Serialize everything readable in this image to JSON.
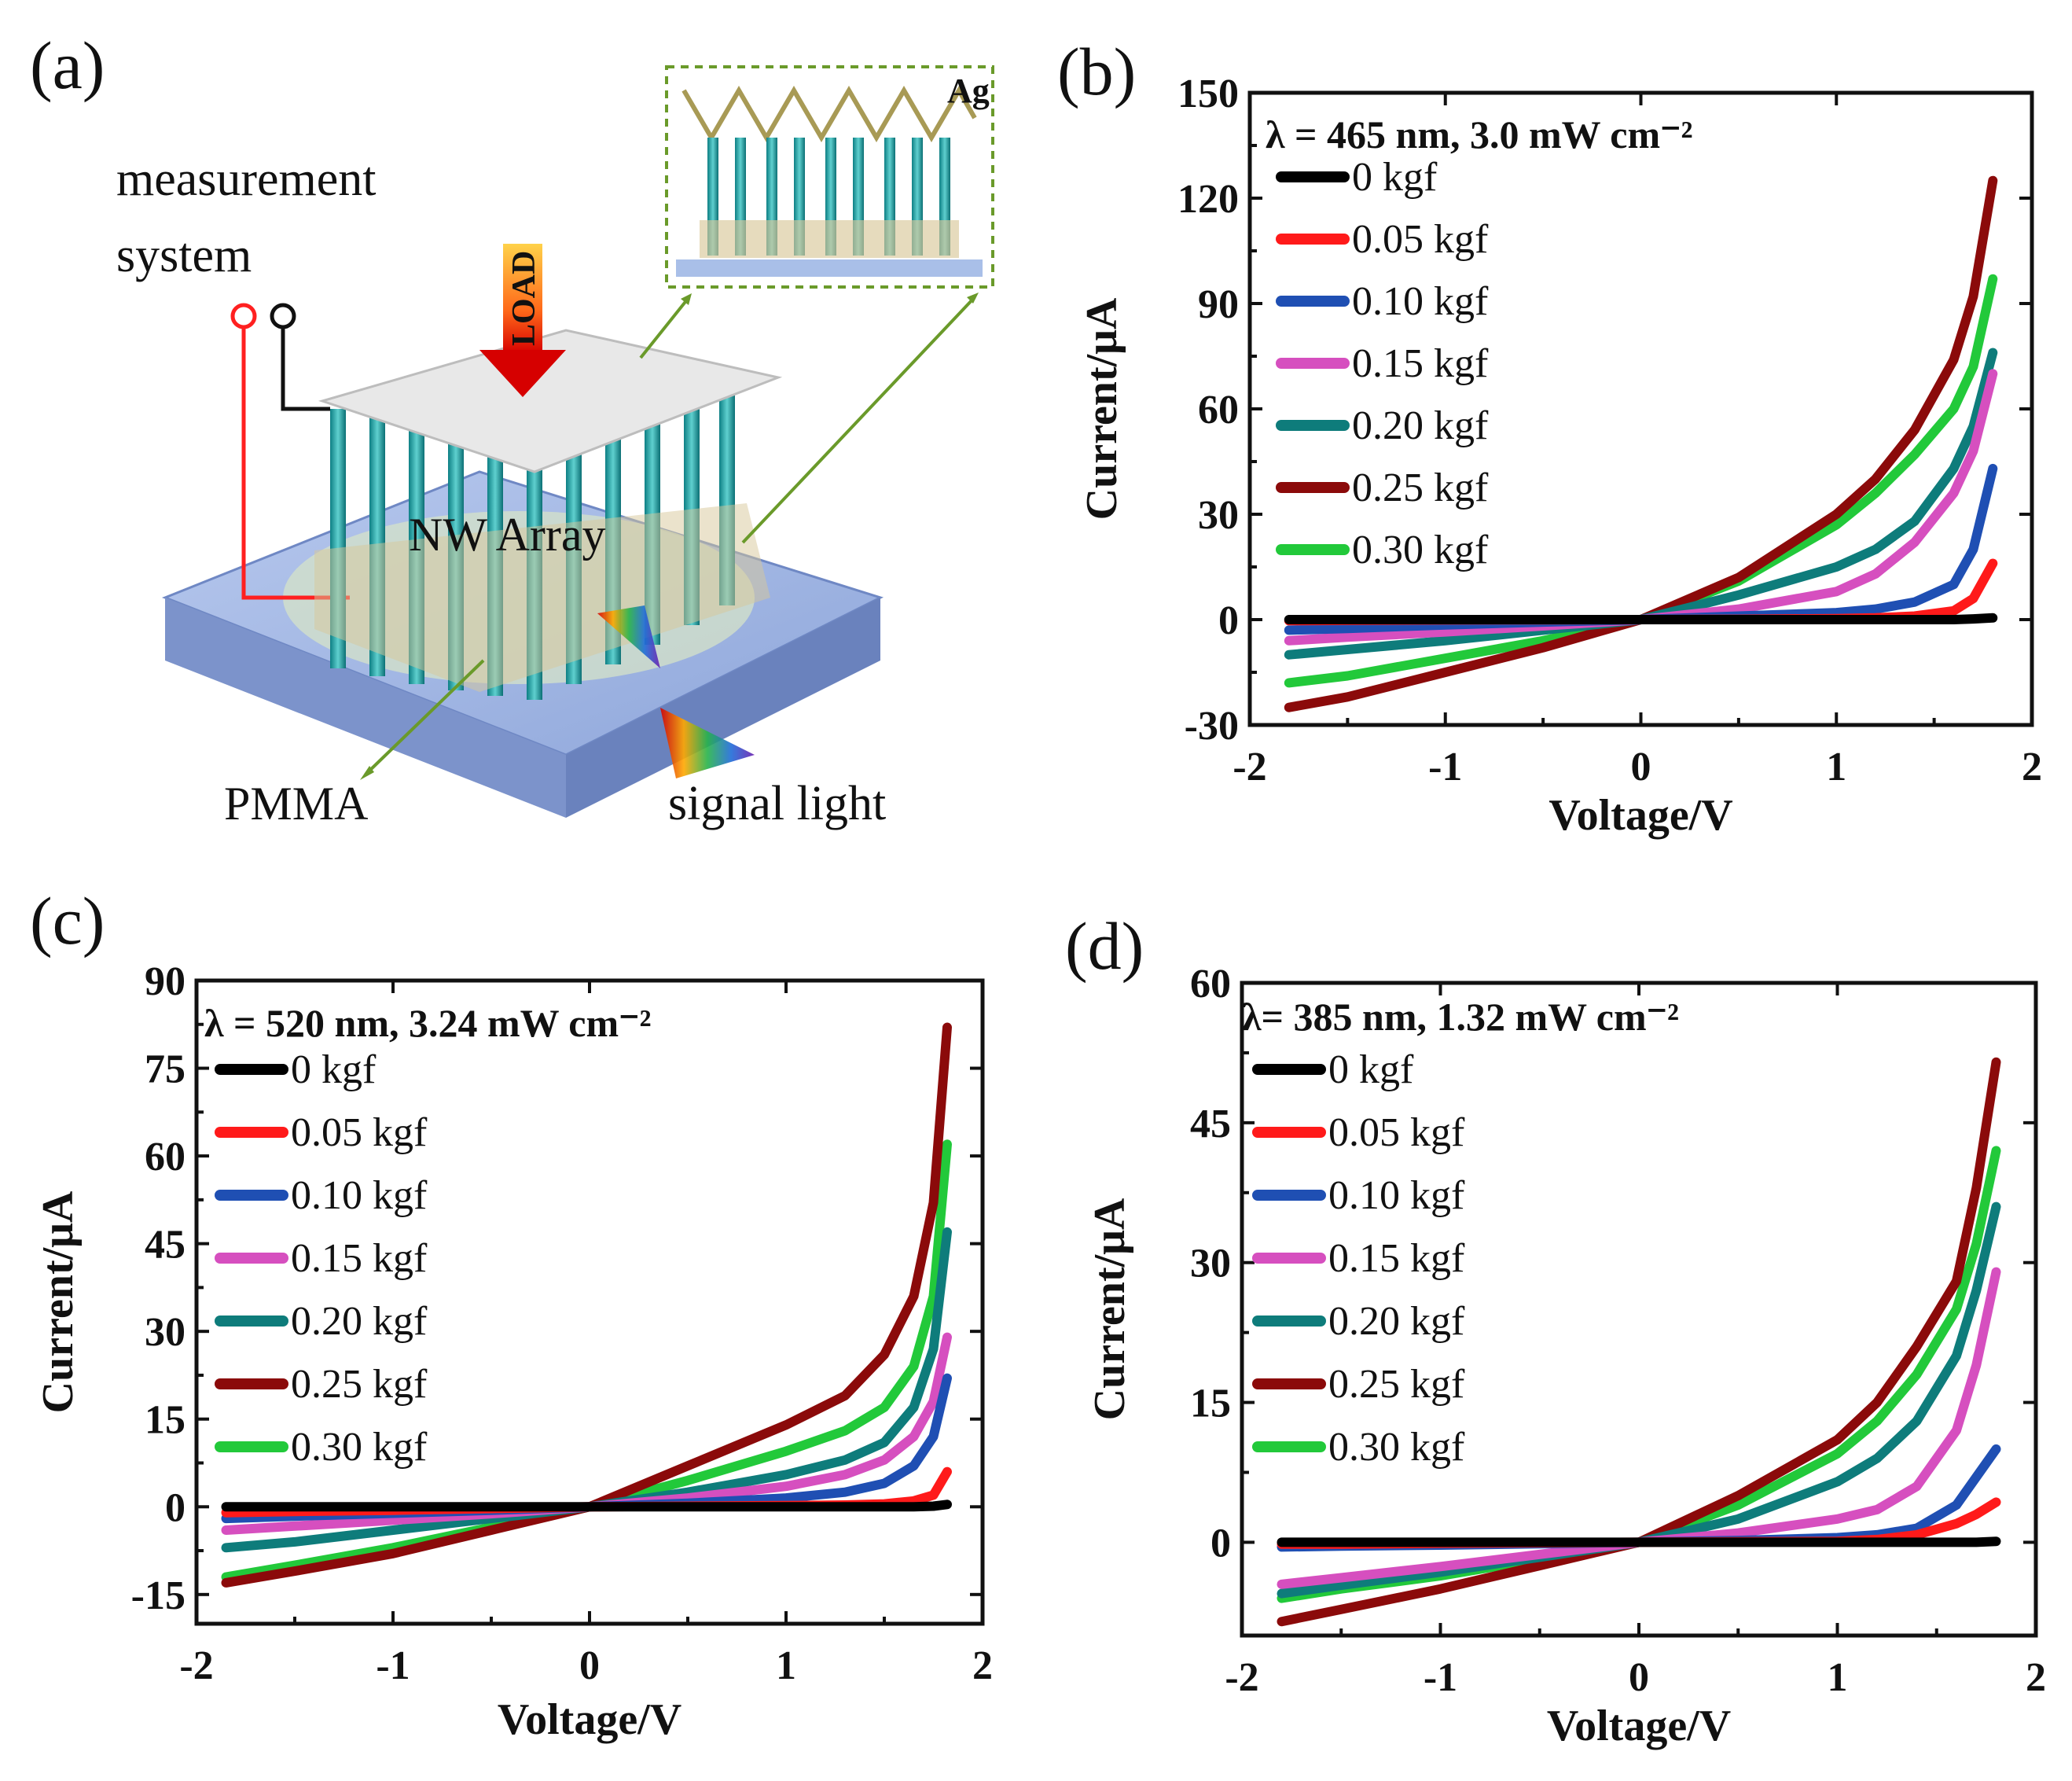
{
  "figure": {
    "panel_labels": [
      "(a)",
      "(b)",
      "(c)",
      "(d)"
    ]
  },
  "schematic": {
    "measurement_label_line1": "measurement",
    "measurement_label_line2": "system",
    "load_label": "LOAD",
    "inset_metal": "Ag",
    "array_label": "NW Array",
    "pmma_label": "PMMA",
    "light_label": "signal light"
  },
  "chart_data": [
    {
      "panel": "(b)",
      "type": "line",
      "title": "λ = 465 nm, 3.0 mW cm⁻²",
      "xlabel": "Voltage/V",
      "ylabel": "Current/μA",
      "xlim": [
        -2,
        2
      ],
      "ylim": [
        -30,
        150
      ],
      "xticks": [
        -2,
        -1,
        0,
        1,
        2
      ],
      "yticks": [
        -30,
        0,
        30,
        60,
        90,
        120,
        150
      ],
      "x": [
        -1.8,
        -1.5,
        -1.0,
        -0.5,
        0,
        0.5,
        1.0,
        1.2,
        1.4,
        1.6,
        1.7,
        1.8
      ],
      "series": [
        {
          "name": "0 kgf",
          "color": "#000000",
          "values": [
            0,
            0,
            0,
            0,
            0,
            0,
            0,
            0,
            0,
            0,
            0.2,
            0.5
          ]
        },
        {
          "name": "0.05 kgf",
          "color": "#ff1a1a",
          "values": [
            -0.3,
            -0.2,
            -0.1,
            -0.05,
            0,
            0.1,
            0.3,
            0.5,
            1,
            2.5,
            6,
            16
          ]
        },
        {
          "name": "0.10 kgf",
          "color": "#1f4fb3",
          "values": [
            -3,
            -2.5,
            -1.5,
            -0.7,
            0,
            1,
            2,
            3,
            5,
            10,
            20,
            43
          ]
        },
        {
          "name": "0.15 kgf",
          "color": "#d64fbf",
          "values": [
            -6,
            -5,
            -3.5,
            -1.8,
            0,
            3,
            8,
            13,
            22,
            36,
            48,
            70
          ]
        },
        {
          "name": "0.20 kgf",
          "color": "#0e7c7b",
          "values": [
            -10,
            -8.5,
            -6,
            -3,
            0,
            7,
            15,
            20,
            28,
            43,
            55,
            76
          ]
        },
        {
          "name": "0.25 kgf",
          "color": "#8b0a0a",
          "values": [
            -25,
            -22,
            -15,
            -8,
            0,
            12,
            30,
            40,
            54,
            74,
            92,
            125
          ]
        },
        {
          "name": "0.30 kgf",
          "color": "#22c93a",
          "values": [
            -18,
            -16,
            -11,
            -6,
            0,
            11,
            27,
            36,
            47,
            60,
            72,
            97
          ]
        }
      ]
    },
    {
      "panel": "(c)",
      "type": "line",
      "title": "λ = 520 nm, 3.24 mW cm⁻²",
      "xlabel": "Voltage/V",
      "ylabel": "Current/μA",
      "xlim": [
        -2,
        2
      ],
      "ylim": [
        -20,
        90
      ],
      "xticks": [
        -2,
        -1,
        0,
        1,
        2
      ],
      "yticks": [
        -15,
        0,
        15,
        30,
        45,
        60,
        75,
        90
      ],
      "x": [
        -1.85,
        -1.5,
        -1.0,
        -0.5,
        0,
        0.5,
        1.0,
        1.3,
        1.5,
        1.65,
        1.75,
        1.82
      ],
      "series": [
        {
          "name": "0 kgf",
          "color": "#000000",
          "values": [
            0,
            0,
            0,
            0,
            0,
            0,
            0,
            0,
            0,
            0,
            0.1,
            0.4
          ]
        },
        {
          "name": "0.05 kgf",
          "color": "#ff1a1a",
          "values": [
            -1,
            -0.8,
            -0.6,
            -0.3,
            0,
            0.1,
            0.2,
            0.3,
            0.5,
            1,
            2,
            6
          ]
        },
        {
          "name": "0.10 kgf",
          "color": "#1f4fb3",
          "values": [
            -2,
            -1.6,
            -1.1,
            -0.6,
            0,
            0.6,
            1.5,
            2.5,
            4,
            7,
            12,
            22
          ]
        },
        {
          "name": "0.15 kgf",
          "color": "#d64fbf",
          "values": [
            -4,
            -3.3,
            -2.3,
            -1.2,
            0,
            1.5,
            3.5,
            5.5,
            8,
            12,
            18,
            29
          ]
        },
        {
          "name": "0.20 kgf",
          "color": "#0e7c7b",
          "values": [
            -7,
            -6,
            -4,
            -2,
            0,
            2.5,
            5.5,
            8,
            11,
            17,
            27,
            47
          ]
        },
        {
          "name": "0.25 kgf",
          "color": "#8b0a0a",
          "values": [
            -13,
            -11,
            -8,
            -4,
            0,
            7,
            14,
            19,
            26,
            36,
            52,
            82
          ]
        },
        {
          "name": "0.30 kgf",
          "color": "#22c93a",
          "values": [
            -12,
            -10,
            -7,
            -3.5,
            0,
            4.5,
            9.5,
            13,
            17,
            24,
            36,
            62
          ]
        }
      ]
    },
    {
      "panel": "(d)",
      "type": "line",
      "title": "λ= 385 nm, 1.32 mW cm⁻²",
      "xlabel": "Voltage/V",
      "ylabel": "Current/μA",
      "xlim": [
        -2,
        2
      ],
      "ylim": [
        -10,
        60
      ],
      "xticks": [
        -2,
        -1,
        0,
        1,
        2
      ],
      "yticks": [
        0,
        15,
        30,
        45,
        60
      ],
      "x": [
        -1.8,
        -1.5,
        -1.0,
        -0.5,
        0,
        0.5,
        1.0,
        1.2,
        1.4,
        1.6,
        1.7,
        1.8
      ],
      "series": [
        {
          "name": "0 kgf",
          "color": "#000000",
          "values": [
            0,
            0,
            0,
            0,
            0,
            0,
            0,
            0,
            0,
            0,
            0,
            0.1
          ]
        },
        {
          "name": "0.05 kgf",
          "color": "#ff1a1a",
          "values": [
            -0.2,
            -0.2,
            -0.1,
            -0.05,
            0,
            0.05,
            0.1,
            0.3,
            0.8,
            2,
            3,
            4.3
          ]
        },
        {
          "name": "0.10 kgf",
          "color": "#1f4fb3",
          "values": [
            -0.5,
            -0.4,
            -0.3,
            -0.15,
            0,
            0.2,
            0.5,
            0.8,
            1.5,
            4,
            7,
            10
          ]
        },
        {
          "name": "0.15 kgf",
          "color": "#d64fbf",
          "values": [
            -4.5,
            -3.8,
            -2.6,
            -1.3,
            0,
            1,
            2.5,
            3.5,
            6,
            12,
            19,
            29
          ]
        },
        {
          "name": "0.20 kgf",
          "color": "#0e7c7b",
          "values": [
            -5.5,
            -4.6,
            -3.2,
            -1.6,
            0,
            2.5,
            6.5,
            9,
            13,
            20,
            27,
            36
          ]
        },
        {
          "name": "0.25 kgf",
          "color": "#8b0a0a",
          "values": [
            -8.5,
            -7.2,
            -5,
            -2.5,
            0,
            5,
            11,
            15,
            21,
            28,
            38,
            51.5
          ]
        },
        {
          "name": "0.30 kgf",
          "color": "#22c93a",
          "values": [
            -6,
            -5,
            -3.6,
            -1.8,
            0,
            4,
            9.5,
            13,
            18,
            25,
            32,
            42
          ]
        }
      ]
    }
  ]
}
